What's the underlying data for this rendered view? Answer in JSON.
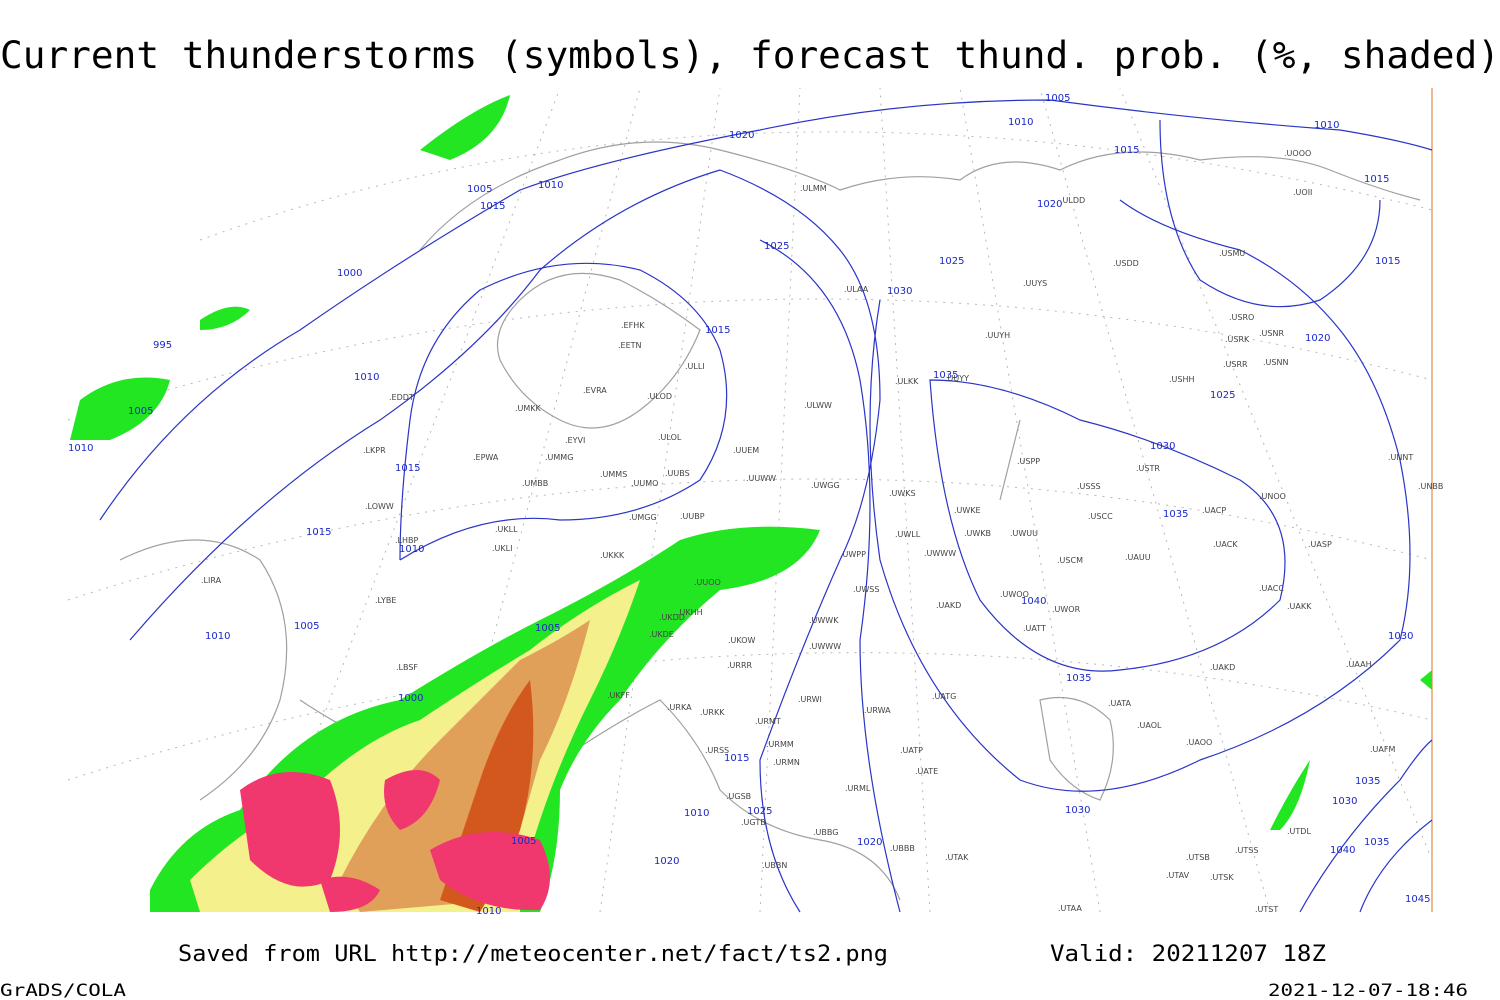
{
  "title": "Current thunderstorms (symbols), forecast thund. prob. (%, shaded)",
  "footer": {
    "source": "Saved from URL http://meteocenter.net/fact/ts2.png",
    "valid": "Valid: 20211207 18Z",
    "software": "GrADS/COLA",
    "timestamp": "2021-12-07-18:46"
  },
  "isobar_labels": [
    "1005",
    "1010",
    "1010",
    "1020",
    "1015",
    "1015",
    "1005",
    "1010",
    "1015",
    "1020",
    "1025",
    "1025",
    "1015",
    "1000",
    "1030",
    "1015",
    "995",
    "1020",
    "1010",
    "1035",
    "1025",
    "1005",
    "1010",
    "1030",
    "1015",
    "1035",
    "1015",
    "1010",
    "1040",
    "1005",
    "1010",
    "1005",
    "1030",
    "1035",
    "1000",
    "1015",
    "1035",
    "1030",
    "1010",
    "1025",
    "1030",
    "1005",
    "1020",
    "1035",
    "1040",
    "1020",
    "1010",
    "1045"
  ],
  "stations": [
    ".ULMM",
    ".ULDD",
    ".UOOO",
    ".UOII",
    ".USDD",
    ".USMU",
    ".UUYS",
    ".ULAA",
    ".EFHK",
    ".EETN",
    ".UUYH",
    ".USRO",
    ".USRK",
    ".USNR",
    ".USNN",
    ".USRR",
    ".ULLI",
    ".EVRA",
    ".ULOD",
    ".UMKK",
    ".EDDT",
    ".ULKK",
    ".UUYY",
    ".USHH",
    ".ULWW",
    ".EYVI",
    ".ULOL",
    ".UUEM",
    ".LKPR",
    ".EPWA",
    ".UMMG",
    ".UMMS",
    ".UUMO",
    ".UUBS",
    ".UUWW",
    ".USPP",
    ".USTR",
    ".UMBB",
    ".UWGG",
    ".UWKS",
    ".USSS",
    ".UNOO",
    ".UNBB",
    ".UNNT",
    ".LOWW",
    ".UMGG",
    ".UUBP",
    ".UWKE",
    ".UWKB",
    ".UWUU",
    ".USCC",
    ".UACP",
    ".UKLL",
    ".UKLI",
    ".LHBP",
    ".UWLL",
    ".UKKK",
    ".UUOO",
    ".UWPP",
    ".UWWW",
    ".USCM",
    ".UAUU",
    ".UACK",
    ".UASP",
    ".LIRA",
    ".UKHH",
    ".UWSS",
    ".UACC",
    ".LYBE",
    ".UKDD",
    ".UAKD",
    ".UWOO",
    ".UWOR",
    ".UAKK",
    ".UKOW",
    ".UWWK",
    ".UATT",
    ".UKDE",
    ".LBSF",
    ".UKFF",
    ".URRR",
    ".UWWW",
    ".UAKD",
    ".UAAH",
    ".UATG",
    ".URWI",
    ".URKA",
    ".URKK",
    ".URMT",
    ".URWA",
    ".UATA",
    ".UAOL",
    ".UAOO",
    ".URMM",
    ".URMN",
    ".URSS",
    ".UATP",
    ".UATE",
    ".URML",
    ".UBBG",
    ".UBBB",
    ".UTAK",
    ".UGSB",
    ".UGTB",
    ".UTSB",
    ".UTSS",
    ".UTAV",
    ".UTSK",
    ".UTAA",
    ".UTST",
    ".UTDL",
    ".UAFM",
    ".UBBN"
  ]
}
